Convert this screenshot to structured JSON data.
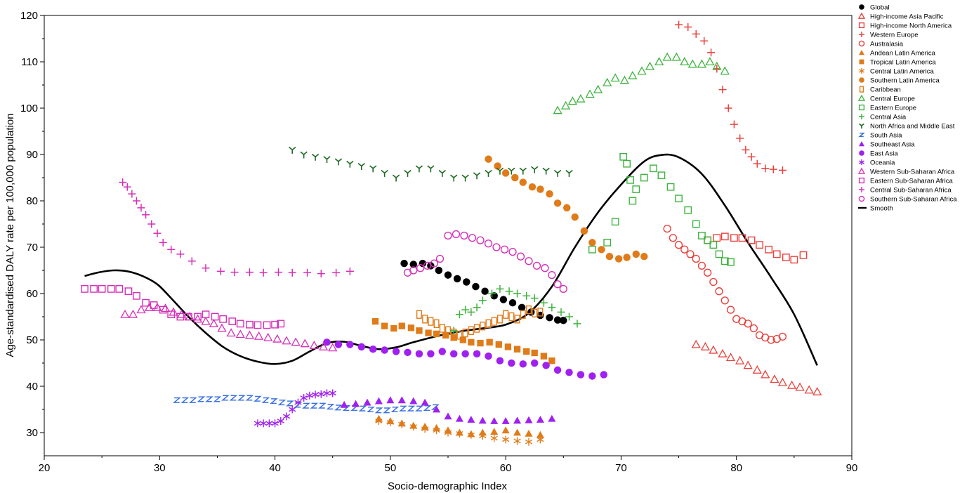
{
  "chart_data": {
    "type": "scatter",
    "title": "",
    "xlabel": "Socio-demographic Index",
    "ylabel": "Age-standardised DALY rate per 100,000 population",
    "xlim": [
      20,
      90
    ],
    "ylim": [
      25,
      120
    ],
    "x_ticks": [
      "20",
      "30",
      "40",
      "50",
      "60",
      "70",
      "80",
      "90"
    ],
    "y_ticks": [
      "30",
      "40",
      "50",
      "60",
      "70",
      "80",
      "90",
      "100",
      "110",
      "120"
    ],
    "grid": false,
    "legend_position": "top-right outside",
    "series": [
      {
        "name": "Global",
        "color": "#000000",
        "marker": "filled-circle",
        "x": [
          51.2,
          52.0,
          52.8,
          53.5,
          54.2,
          55.0,
          55.8,
          56.6,
          57.4,
          58.2,
          59.0,
          59.8,
          60.6,
          61.4,
          62.2,
          63.0,
          63.8,
          64.5,
          65.0
        ],
        "y": [
          66.5,
          66.3,
          66.5,
          66.0,
          65.0,
          64.0,
          63.2,
          62.5,
          61.5,
          60.5,
          59.5,
          58.7,
          58.0,
          57.0,
          56.0,
          55.3,
          54.8,
          54.3,
          54.2
        ]
      },
      {
        "name": "High-income Asia Pacific",
        "color": "#e8413c",
        "marker": "open-triangle",
        "x": [
          76.5,
          77.3,
          78.0,
          78.8,
          79.5,
          80.3,
          81.0,
          81.8,
          82.5,
          83.3,
          84.0,
          84.8,
          85.5,
          86.3,
          87.0
        ],
        "y": [
          49.0,
          48.5,
          47.8,
          47.0,
          46.2,
          45.5,
          44.5,
          43.5,
          42.5,
          41.5,
          40.8,
          40.2,
          39.8,
          39.2,
          38.8
        ]
      },
      {
        "name": "High-income North America",
        "color": "#e8413c",
        "marker": "open-square",
        "x": [
          77.5,
          78.3,
          79.0,
          79.8,
          80.5,
          81.3,
          82.0,
          82.8,
          83.5,
          84.3,
          85.0,
          85.8
        ],
        "y": [
          71.5,
          72.0,
          72.3,
          72.0,
          72.0,
          71.5,
          70.5,
          69.5,
          68.5,
          67.8,
          67.3,
          68.3
        ]
      },
      {
        "name": "Western Europe",
        "color": "#e8413c",
        "marker": "plus",
        "x": [
          75.0,
          75.8,
          76.5,
          77.2,
          77.8,
          78.3,
          78.8,
          79.3,
          79.8,
          80.3,
          80.8,
          81.3,
          81.8,
          82.5,
          83.2,
          84.0
        ],
        "y": [
          118.0,
          117.5,
          116.0,
          114.5,
          112.0,
          108.5,
          104.0,
          100.0,
          96.5,
          93.5,
          91.0,
          89.5,
          88.0,
          87.0,
          86.8,
          86.6
        ]
      },
      {
        "name": "Australasia",
        "color": "#e8413c",
        "marker": "open-circle",
        "x": [
          74.0,
          74.5,
          75.0,
          75.5,
          76.0,
          76.5,
          77.0,
          77.5,
          78.0,
          78.5,
          79.0,
          79.5,
          80.0,
          80.5,
          81.0,
          81.5,
          82.0,
          82.5,
          83.0,
          83.5,
          84.0
        ],
        "y": [
          74.0,
          72.0,
          70.5,
          69.5,
          68.5,
          67.5,
          66.0,
          64.5,
          62.5,
          60.5,
          58.5,
          56.5,
          54.5,
          54.0,
          53.5,
          52.5,
          51.0,
          50.5,
          50.0,
          50.2,
          50.7
        ]
      },
      {
        "name": "Andean Latin America",
        "color": "#e07b1a",
        "marker": "filled-triangle",
        "x": [
          49.0,
          50.0,
          51.0,
          52.0,
          53.0,
          54.0,
          55.0,
          56.0,
          57.0,
          58.0,
          59.0,
          60.0,
          61.0,
          62.0,
          63.0
        ],
        "y": [
          33.0,
          32.5,
          32.0,
          31.5,
          31.3,
          31.0,
          30.5,
          30.0,
          29.7,
          30.0,
          30.2,
          30.5,
          30.0,
          29.8,
          29.5
        ]
      },
      {
        "name": "Tropical Latin America",
        "color": "#e07b1a",
        "marker": "filled-square",
        "x": [
          48.7,
          49.5,
          50.3,
          51.0,
          51.8,
          52.5,
          53.3,
          54.0,
          54.8,
          55.5,
          56.3,
          57.0,
          57.8,
          58.6,
          59.4,
          60.2,
          61.0,
          61.8,
          62.5,
          63.3,
          64.0
        ],
        "y": [
          54.0,
          53.0,
          52.5,
          53.0,
          52.6,
          52.0,
          51.5,
          51.3,
          51.0,
          50.5,
          50.0,
          49.5,
          49.3,
          49.5,
          49.0,
          48.5,
          48.0,
          47.5,
          47.2,
          46.5,
          45.5
        ]
      },
      {
        "name": "Central Latin America",
        "color": "#e07b1a",
        "marker": "asterisk",
        "x": [
          49.0,
          50.0,
          51.0,
          52.0,
          53.0,
          54.0,
          55.0,
          56.0,
          57.0,
          58.0,
          59.0,
          60.0,
          61.0,
          62.0,
          63.0
        ],
        "y": [
          32.5,
          32.2,
          31.8,
          31.3,
          30.8,
          30.5,
          30.0,
          29.8,
          29.5,
          29.3,
          28.8,
          28.5,
          28.2,
          28.0,
          28.5
        ]
      },
      {
        "name": "Southern Latin America",
        "color": "#e07b1a",
        "marker": "filled-circle",
        "x": [
          58.5,
          59.3,
          60.0,
          60.8,
          61.5,
          62.3,
          63.0,
          63.8,
          64.5,
          65.3,
          66.0,
          66.8,
          67.5,
          68.3,
          69.0,
          69.8,
          70.5,
          71.3,
          72.0
        ],
        "y": [
          89.0,
          87.5,
          86.0,
          85.0,
          84.0,
          83.0,
          82.5,
          81.5,
          79.5,
          78.5,
          76.5,
          73.5,
          71.0,
          69.5,
          68.0,
          67.5,
          67.8,
          68.5,
          68.0
        ]
      },
      {
        "name": "Caribbean",
        "color": "#e07b1a",
        "marker": "open-square-narrow",
        "x": [
          52.5,
          53.0,
          53.5,
          54.0,
          54.5,
          55.0,
          55.5,
          56.0,
          56.5,
          57.0,
          57.5,
          58.0,
          58.5,
          59.0,
          59.5,
          60.0,
          60.5,
          61.0,
          61.5,
          62.0,
          62.5,
          63.0
        ],
        "y": [
          55.5,
          54.5,
          54.0,
          53.5,
          52.5,
          52.0,
          51.5,
          51.0,
          51.5,
          52.0,
          52.5,
          53.0,
          53.5,
          54.0,
          54.5,
          55.5,
          55.0,
          54.5,
          55.5,
          56.5,
          55.8,
          56.0
        ]
      },
      {
        "name": "Central Europe",
        "color": "#3cb33c",
        "marker": "open-triangle",
        "x": [
          64.5,
          65.2,
          65.8,
          66.5,
          67.3,
          68.0,
          68.8,
          69.5,
          70.3,
          71.0,
          71.8,
          72.5,
          73.3,
          74.0,
          74.8,
          75.5,
          76.2,
          77.0,
          77.7,
          78.3,
          79.0
        ],
        "y": [
          99.5,
          100.5,
          101.5,
          102.0,
          103.0,
          104.0,
          105.5,
          106.5,
          106.0,
          107.0,
          108.0,
          109.0,
          110.0,
          111.0,
          111.0,
          110.0,
          109.5,
          109.5,
          110.0,
          109.0,
          108.0
        ]
      },
      {
        "name": "Eastern Europe",
        "color": "#3cb33c",
        "marker": "open-square",
        "x": [
          70.2,
          70.5,
          70.8,
          71.0,
          71.3,
          72.0,
          72.8,
          73.5,
          74.3,
          75.0,
          75.8,
          76.5,
          77.0,
          77.5,
          78.0,
          78.5,
          79.0,
          79.5,
          67.5,
          68.8,
          69.5
        ],
        "y": [
          89.5,
          88.0,
          84.5,
          80.0,
          82.5,
          85.0,
          87.0,
          85.5,
          83.0,
          80.5,
          78.0,
          75.0,
          72.5,
          71.5,
          70.5,
          68.5,
          67.0,
          66.8,
          69.5,
          71.0,
          75.5
        ]
      },
      {
        "name": "Central Asia",
        "color": "#3cb33c",
        "marker": "plus",
        "x": [
          55.5,
          56.0,
          56.5,
          57.0,
          57.5,
          58.0,
          58.8,
          59.5,
          60.3,
          61.0,
          61.8,
          62.5,
          63.3,
          64.0,
          64.8,
          65.5,
          66.2
        ],
        "y": [
          52.0,
          55.5,
          56.5,
          56.0,
          57.0,
          58.5,
          60.0,
          61.0,
          60.5,
          60.0,
          59.5,
          59.0,
          58.0,
          57.0,
          56.0,
          55.0,
          53.5
        ]
      },
      {
        "name": "North Africa and Middle East",
        "color": "#1f6b23",
        "marker": "tri-y",
        "x": [
          41.5,
          42.5,
          43.5,
          44.5,
          45.5,
          46.5,
          47.5,
          48.5,
          49.5,
          50.5,
          51.5,
          52.5,
          53.5,
          54.5,
          55.5,
          56.5,
          57.5,
          58.5,
          59.5,
          60.5,
          61.5,
          62.5,
          63.5,
          64.5,
          65.5
        ],
        "y": [
          91.0,
          90.0,
          89.5,
          89.0,
          88.5,
          88.0,
          87.5,
          87.0,
          86.0,
          85.0,
          86.0,
          87.0,
          87.0,
          86.0,
          85.0,
          85.0,
          85.5,
          86.0,
          86.5,
          86.5,
          86.5,
          86.8,
          86.5,
          86.0,
          86.0
        ]
      },
      {
        "name": "South Asia",
        "color": "#3b73e0",
        "marker": "z-glyph",
        "x": [
          31.5,
          32.2,
          32.9,
          33.6,
          34.3,
          35.0,
          35.7,
          36.4,
          37.1,
          37.8,
          38.5,
          39.2,
          39.9,
          40.6,
          41.3,
          42.0,
          42.7,
          43.4,
          44.1,
          44.8,
          45.5,
          46.2,
          46.9,
          47.6,
          48.3,
          49.0,
          49.7,
          50.4,
          51.1,
          51.8,
          52.5,
          53.2,
          53.9
        ],
        "y": [
          37.0,
          37.0,
          37.0,
          37.2,
          37.2,
          37.2,
          37.5,
          37.5,
          37.5,
          37.5,
          37.3,
          37.0,
          36.8,
          36.5,
          36.3,
          36.0,
          35.8,
          35.8,
          35.8,
          35.6,
          35.4,
          35.3,
          35.3,
          35.2,
          35.0,
          34.8,
          34.8,
          35.0,
          35.2,
          35.2,
          35.2,
          35.3,
          35.5
        ]
      },
      {
        "name": "Southeast Asia",
        "color": "#a020f0",
        "marker": "filled-triangle",
        "x": [
          46.0,
          47.0,
          48.0,
          49.0,
          50.0,
          51.0,
          52.0,
          53.0,
          54.0,
          55.0,
          56.0,
          57.0,
          58.0,
          59.0,
          60.0,
          61.0,
          62.0,
          63.0,
          64.0
        ],
        "y": [
          36.0,
          36.2,
          36.5,
          36.8,
          37.0,
          37.0,
          36.8,
          36.5,
          35.0,
          33.5,
          33.0,
          32.8,
          32.6,
          32.5,
          32.5,
          32.6,
          32.7,
          32.8,
          33.0
        ]
      },
      {
        "name": "East Asia",
        "color": "#a020f0",
        "marker": "filled-circle",
        "x": [
          44.5,
          45.5,
          46.5,
          47.5,
          48.5,
          49.5,
          50.5,
          51.5,
          52.5,
          53.5,
          54.5,
          55.5,
          56.5,
          57.5,
          58.5,
          59.5,
          60.5,
          61.5,
          62.5,
          63.5,
          64.5,
          65.5,
          66.5,
          67.5,
          68.5
        ],
        "y": [
          49.5,
          49.0,
          49.0,
          48.5,
          48.0,
          47.8,
          47.5,
          47.3,
          47.0,
          47.0,
          47.5,
          47.0,
          47.0,
          47.0,
          46.5,
          45.5,
          45.0,
          44.8,
          45.0,
          44.5,
          43.5,
          43.0,
          42.5,
          42.2,
          42.5
        ]
      },
      {
        "name": "Oceania",
        "color": "#a020f0",
        "marker": "asterisk",
        "x": [
          38.5,
          39.0,
          39.5,
          40.0,
          40.5,
          41.0,
          41.5,
          42.0,
          42.5,
          43.0,
          43.5,
          44.0,
          44.5,
          45.0
        ],
        "y": [
          32.0,
          32.0,
          32.0,
          32.0,
          32.5,
          33.5,
          35.0,
          36.5,
          37.5,
          38.0,
          38.2,
          38.3,
          38.5,
          38.5
        ]
      },
      {
        "name": "Western Sub-Saharan Africa",
        "color": "#d62fb8",
        "marker": "open-triangle",
        "x": [
          27.0,
          27.7,
          28.4,
          29.1,
          29.8,
          30.5,
          31.2,
          31.9,
          32.6,
          33.3,
          34.0,
          34.7,
          35.4,
          36.2,
          37.0,
          37.8,
          38.6,
          39.4,
          40.2,
          41.0,
          41.8,
          42.6,
          43.4,
          44.2,
          45.0
        ],
        "y": [
          55.5,
          55.5,
          56.5,
          57.0,
          57.0,
          56.8,
          56.0,
          55.5,
          55.0,
          54.5,
          54.0,
          53.5,
          52.5,
          51.5,
          51.2,
          51.0,
          50.8,
          50.5,
          50.2,
          49.8,
          49.5,
          49.2,
          48.8,
          48.5,
          48.3
        ]
      },
      {
        "name": "Eastern Sub-Saharan Africa",
        "color": "#d62fb8",
        "marker": "open-square",
        "x": [
          23.5,
          24.3,
          25.0,
          25.8,
          26.5,
          27.3,
          28.0,
          28.8,
          29.5,
          30.3,
          31.0,
          31.8,
          32.5,
          33.3,
          34.0,
          34.8,
          35.5,
          36.3,
          37.0,
          37.8,
          38.5,
          39.3,
          40.0,
          40.5
        ],
        "y": [
          61.0,
          61.0,
          61.0,
          61.0,
          61.0,
          60.5,
          59.5,
          58.0,
          57.5,
          56.5,
          55.5,
          55.0,
          55.0,
          55.0,
          55.5,
          55.0,
          54.5,
          54.0,
          53.5,
          53.3,
          53.2,
          53.2,
          53.3,
          53.5
        ]
      },
      {
        "name": "Central Sub-Saharan Africa",
        "color": "#d62fb8",
        "marker": "plus",
        "x": [
          26.8,
          27.2,
          27.6,
          28.0,
          28.4,
          28.8,
          29.3,
          29.8,
          30.3,
          31.0,
          31.8,
          32.8,
          34.0,
          35.3,
          36.5,
          37.8,
          39.0,
          40.3,
          41.5,
          42.8,
          44.0,
          45.3,
          46.5
        ],
        "y": [
          84.0,
          83.0,
          81.5,
          80.0,
          78.5,
          77.0,
          75.0,
          73.0,
          71.0,
          69.5,
          68.5,
          67.0,
          65.5,
          64.8,
          64.6,
          64.6,
          64.5,
          64.6,
          64.5,
          64.5,
          64.3,
          64.5,
          64.8
        ]
      },
      {
        "name": "Southern Sub-Saharan Africa",
        "color": "#d62fb8",
        "marker": "open-circle",
        "x": [
          51.5,
          52.0,
          52.6,
          53.2,
          53.8,
          54.3,
          55.0,
          55.7,
          56.4,
          57.1,
          57.8,
          58.5,
          59.2,
          59.9,
          60.6,
          61.3,
          62.0,
          62.7,
          63.4,
          64.0,
          64.5,
          65.0
        ],
        "y": [
          64.5,
          65.0,
          65.5,
          66.0,
          66.5,
          67.5,
          72.5,
          72.8,
          72.5,
          72.0,
          71.5,
          70.8,
          70.0,
          69.5,
          69.0,
          68.0,
          67.0,
          66.0,
          65.5,
          64.0,
          62.0,
          61.0
        ]
      }
    ],
    "smooth": {
      "name": "Smooth",
      "color": "#000000",
      "x": [
        23.5,
        24.8,
        26.0,
        27.2,
        28.5,
        29.8,
        31.0,
        32.5,
        34.0,
        35.5,
        37.0,
        38.5,
        40.0,
        41.5,
        43.0,
        44.5,
        46.0,
        47.5,
        49.0,
        50.5,
        52.0,
        54.0,
        56.0,
        58.0,
        60.0,
        62.0,
        64.0,
        66.0,
        68.0,
        70.0,
        72.0,
        73.5,
        75.0,
        77.0,
        79.0,
        81.0,
        83.0,
        85.0,
        87.0
      ],
      "y": [
        63.8,
        64.6,
        65.0,
        64.8,
        63.8,
        62.0,
        59.0,
        55.0,
        51.5,
        48.5,
        46.5,
        45.3,
        44.8,
        45.5,
        47.5,
        49.3,
        49.6,
        48.7,
        48.0,
        48.4,
        49.5,
        50.8,
        51.8,
        52.5,
        53.3,
        55.8,
        61.5,
        70.0,
        77.5,
        83.5,
        88.5,
        89.9,
        89.4,
        85.8,
        79.0,
        71.0,
        63.5,
        55.5,
        44.5
      ]
    }
  }
}
